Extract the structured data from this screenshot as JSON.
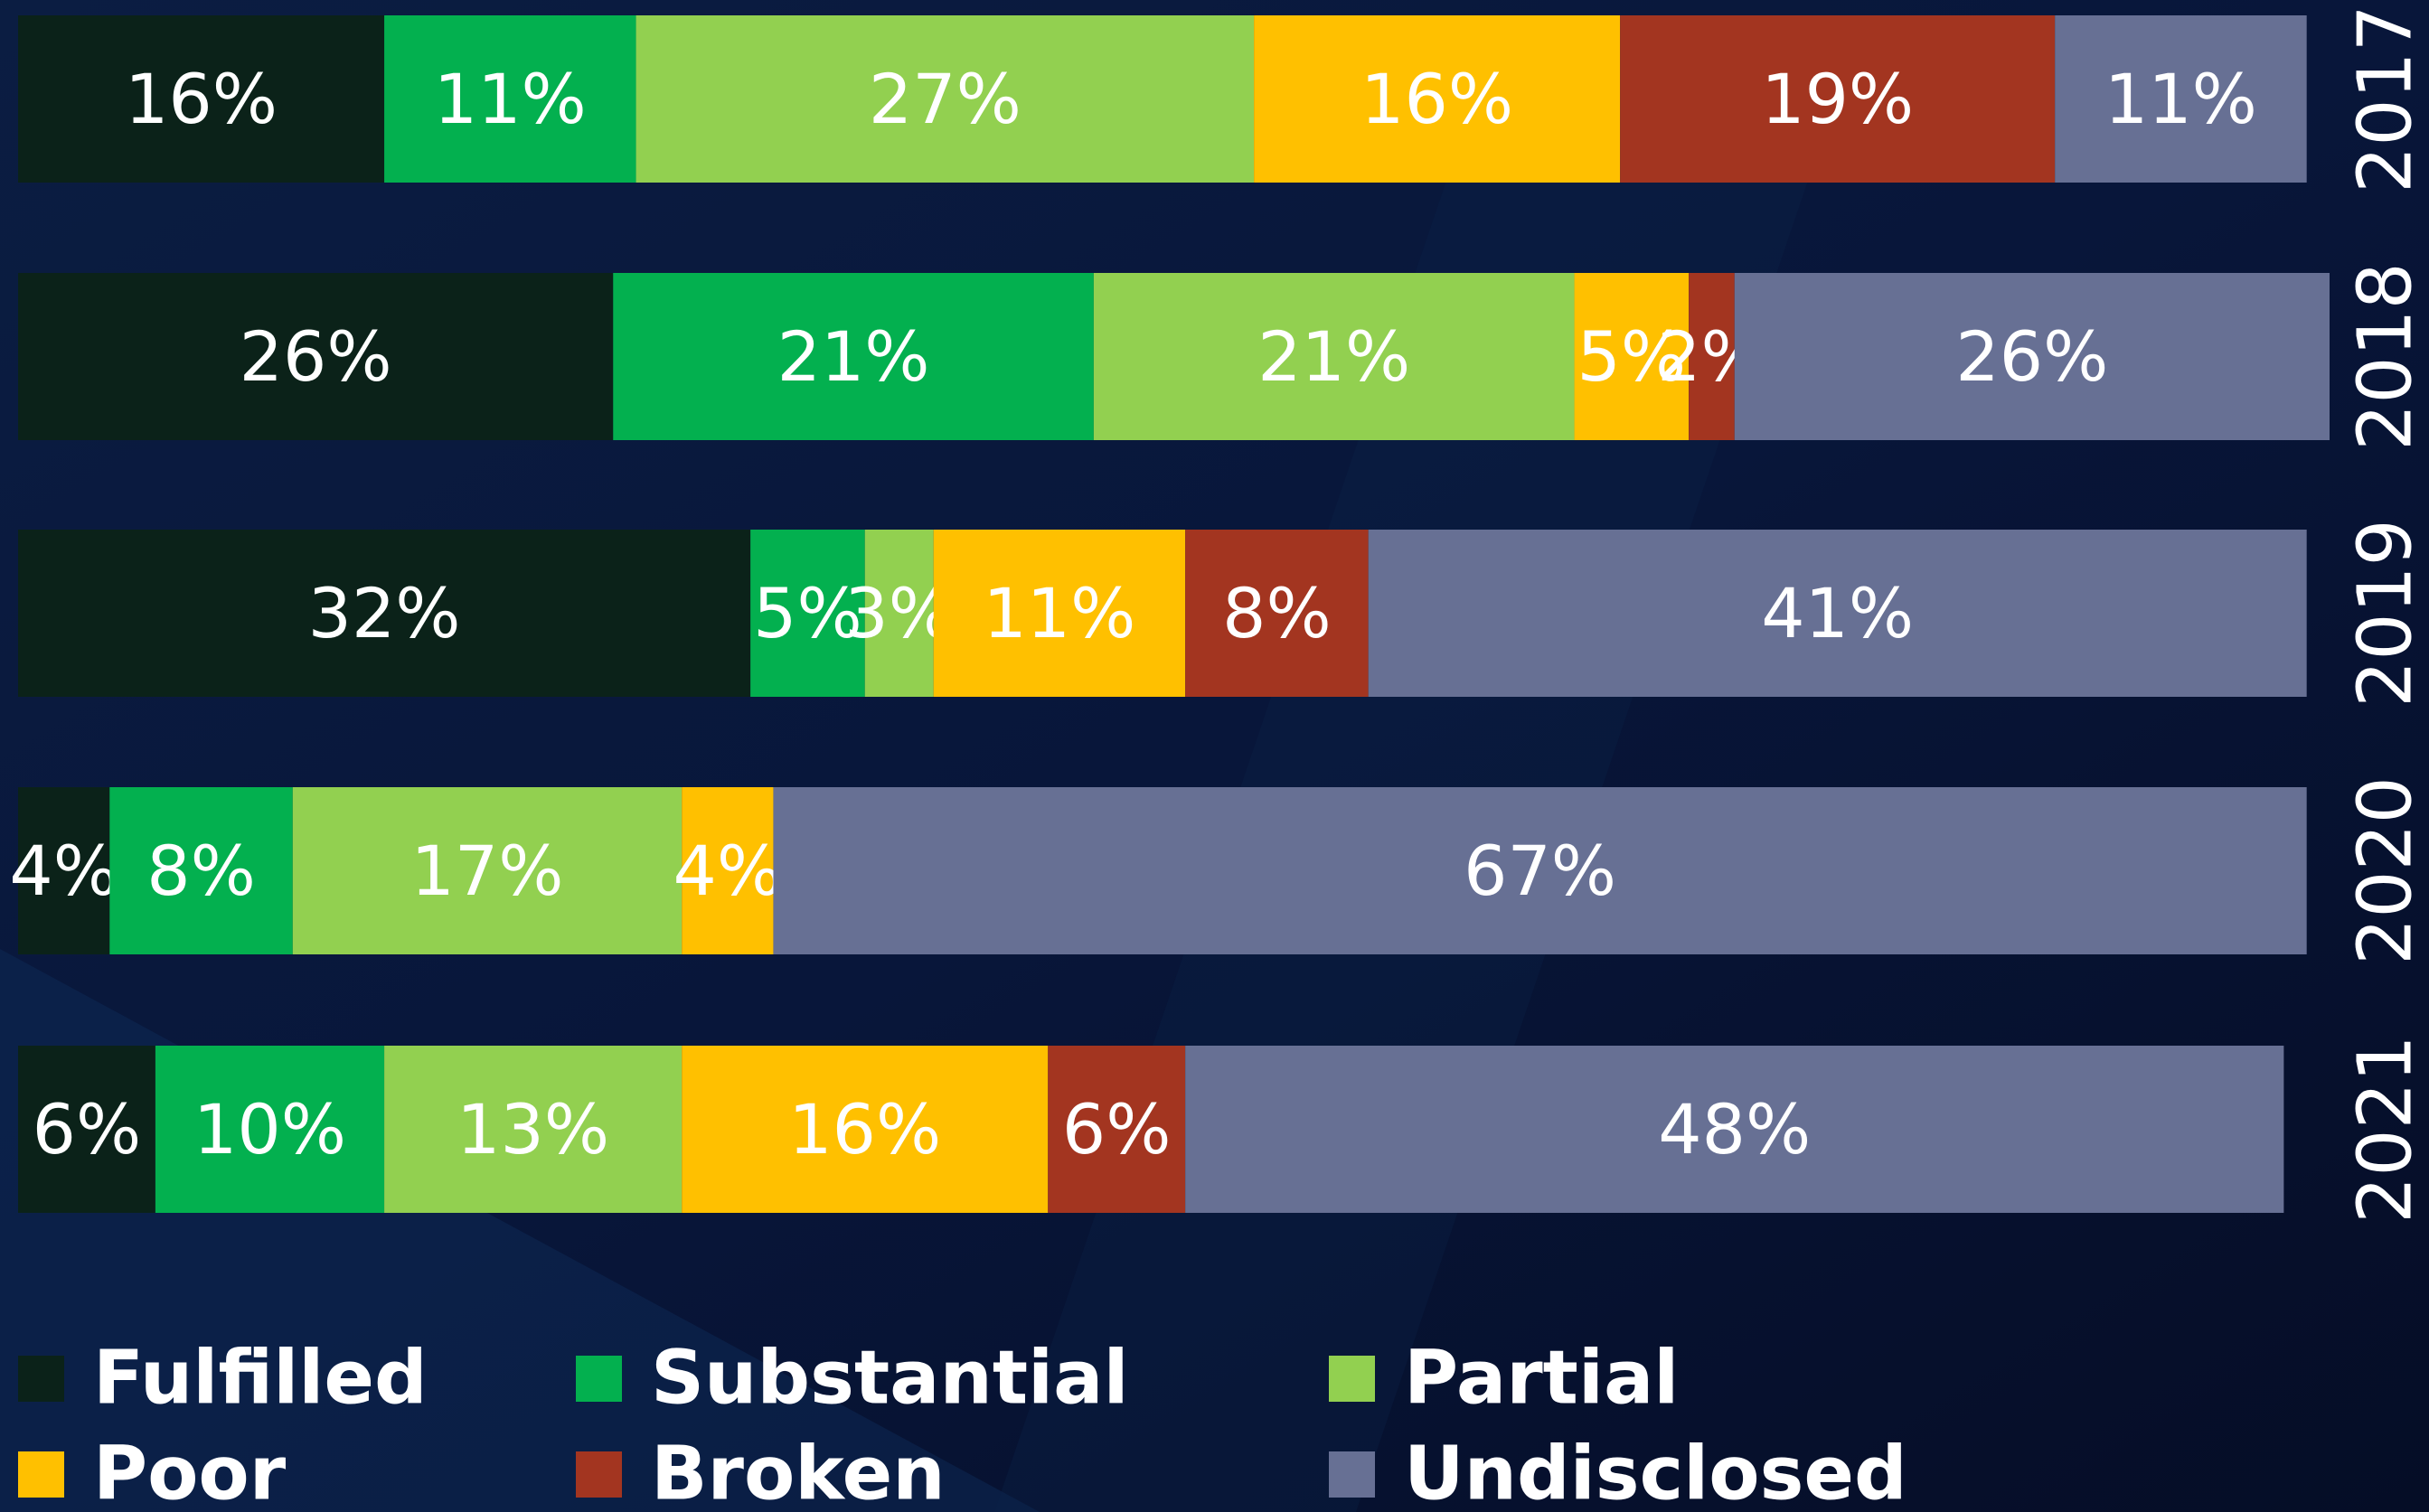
{
  "chart_data": {
    "type": "stacked_barh",
    "categories": [
      "2017",
      "2018",
      "2019",
      "2020",
      "2021"
    ],
    "xlim": [
      0,
      101
    ],
    "series": [
      {
        "name": "Fulfilled",
        "color": "#0b2219",
        "values": [
          16,
          26,
          32,
          4,
          6
        ],
        "value_labels": [
          "16%",
          "26%",
          "32%",
          "4%",
          "6%"
        ]
      },
      {
        "name": "Substantial",
        "color": "#03b04f",
        "values": [
          11,
          21,
          5,
          8,
          10
        ],
        "value_labels": [
          "11%",
          "21%",
          "5%",
          "8%",
          "10%"
        ]
      },
      {
        "name": "Partial",
        "color": "#92d050",
        "values": [
          27,
          21,
          3,
          17,
          13
        ],
        "value_labels": [
          "27%",
          "21%",
          "3%",
          "17%",
          "13%"
        ]
      },
      {
        "name": "Poor",
        "color": "#ffc000",
        "values": [
          16,
          5,
          11,
          4,
          16
        ],
        "value_labels": [
          "16%",
          "5%",
          "11%",
          "4%",
          "16%"
        ]
      },
      {
        "name": "Broken",
        "color": "#a33520",
        "values": [
          19,
          2,
          8,
          null,
          6
        ],
        "value_labels": [
          "19%",
          "2%",
          "8%",
          null,
          "6%"
        ]
      },
      {
        "name": "Undisclosed",
        "color": "#677094",
        "values": [
          11,
          26,
          41,
          67,
          48
        ],
        "value_labels": [
          "11%",
          "26%",
          "41%",
          "67%",
          "48%"
        ]
      }
    ],
    "legend": "bottom"
  }
}
